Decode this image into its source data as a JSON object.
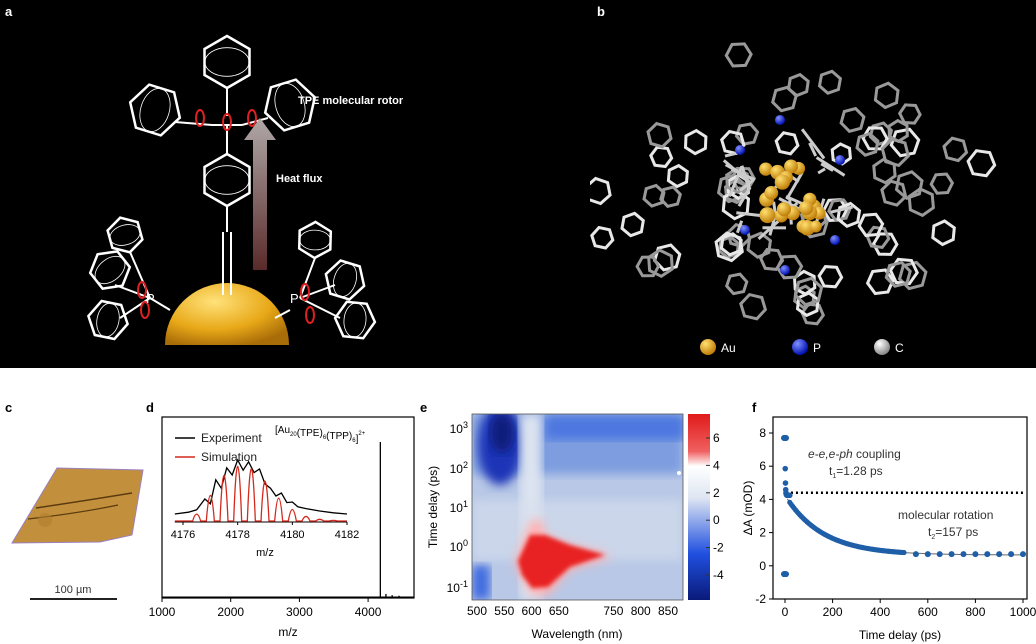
{
  "panels": {
    "a": {
      "label": "a",
      "rotor_label": "TPE molecular rotor",
      "heat_label": "Heat flux",
      "gold_label": "gold",
      "phosphorus_label": "P"
    },
    "b": {
      "label": "b",
      "legend": [
        {
          "name": "Au",
          "color": "#f2a81c"
        },
        {
          "name": "P",
          "color": "#1020e0"
        },
        {
          "name": "C",
          "color": "#c8c8c8"
        }
      ]
    },
    "c": {
      "label": "c",
      "scale_bar": "100 µm"
    },
    "d": {
      "label": "d"
    },
    "e": {
      "label": "e"
    },
    "f": {
      "label": "f"
    }
  },
  "chart_data": [
    {
      "panel": "d",
      "type": "line",
      "xlabel": "m/z",
      "xticks": [
        1000,
        2000,
        3000,
        4000
      ],
      "xlim": [
        1000,
        4800
      ],
      "annotation": {
        "base": "[Au",
        "sub1": "20",
        "mid1": "(TPE)",
        "sub2": "6",
        "mid2": "(TPP)",
        "sub3": "6",
        "end": "]",
        "sup": "2+"
      },
      "main_peaks": {
        "x": [
          4178,
          4260,
          4350,
          4450
        ],
        "y": [
          1.0,
          0.02,
          0.012,
          0.008
        ]
      },
      "inset": {
        "xlabel": "m/z",
        "xticks": [
          4176,
          4178,
          4180,
          4182
        ],
        "xlim": [
          4175.7,
          4182
        ],
        "series": [
          {
            "name": "Experiment",
            "color": "#000000",
            "x": [
              4175.7,
              4176.2,
              4176.5,
              4176.8,
              4177.0,
              4177.2,
              4177.4,
              4177.6,
              4177.8,
              4178.0,
              4178.2,
              4178.4,
              4178.6,
              4178.8,
              4179.0,
              4179.2,
              4179.4,
              4179.6,
              4179.8,
              4180.0,
              4180.2,
              4180.5,
              4181.0,
              4181.5,
              4182.0
            ],
            "y": [
              0.05,
              0.08,
              0.12,
              0.3,
              0.22,
              0.62,
              0.48,
              0.82,
              0.7,
              0.95,
              0.78,
              0.92,
              0.74,
              0.8,
              0.55,
              0.48,
              0.35,
              0.4,
              0.24,
              0.25,
              0.17,
              0.14,
              0.1,
              0.07,
              0.05
            ]
          },
          {
            "name": "Simulation",
            "color": "#d42a1e",
            "peaks_x": [
              4176.5,
              4177.0,
              4177.5,
              4178.0,
              4178.5,
              4179.0,
              4179.5,
              4180.0,
              4180.5,
              4181.0,
              4181.5
            ],
            "peaks_y": [
              0.12,
              0.45,
              0.8,
              0.96,
              0.92,
              0.7,
              0.4,
              0.2,
              0.08,
              0.03,
              0.01
            ]
          }
        ]
      }
    },
    {
      "panel": "e",
      "type": "heatmap",
      "xlabel": "Wavelength (nm)",
      "ylabel": "Time delay (ps)",
      "xticks": [
        500,
        550,
        600,
        650,
        750,
        800,
        850
      ],
      "xlim": [
        495,
        880
      ],
      "yscale": "log",
      "yticks": [
        "10-1",
        "100",
        "101",
        "102",
        "103"
      ],
      "colorbar": {
        "ticks": [
          -4,
          -2,
          0,
          2,
          4,
          6
        ],
        "range": [
          -5.5,
          7.5
        ],
        "colors": [
          "#0a1a7a",
          "#2050e0",
          "#ffffff",
          "#e01a1a"
        ]
      }
    },
    {
      "panel": "f",
      "type": "scatter",
      "xlabel": "Time delay (ps)",
      "ylabel": "ΔA (mOD)",
      "xticks": [
        0,
        200,
        400,
        600,
        800,
        1000
      ],
      "yticks": [
        -2,
        0,
        2,
        4,
        6,
        8
      ],
      "xlim": [
        -25,
        1000
      ],
      "ylim": [
        -2,
        9
      ],
      "color": "#1f5fa8",
      "annotations": [
        {
          "italic": "e-e,e-ph",
          "text": " coupling",
          "line2": "t",
          "sub": "1",
          "value": "=1.28 ps"
        },
        {
          "text": "molecular rotation",
          "line2": "t",
          "sub": "2",
          "value": "=157 ps"
        }
      ],
      "dotted_level": 4.4,
      "fit": {
        "A": 3.6,
        "tau": 157,
        "offset": 0.65
      }
    }
  ]
}
